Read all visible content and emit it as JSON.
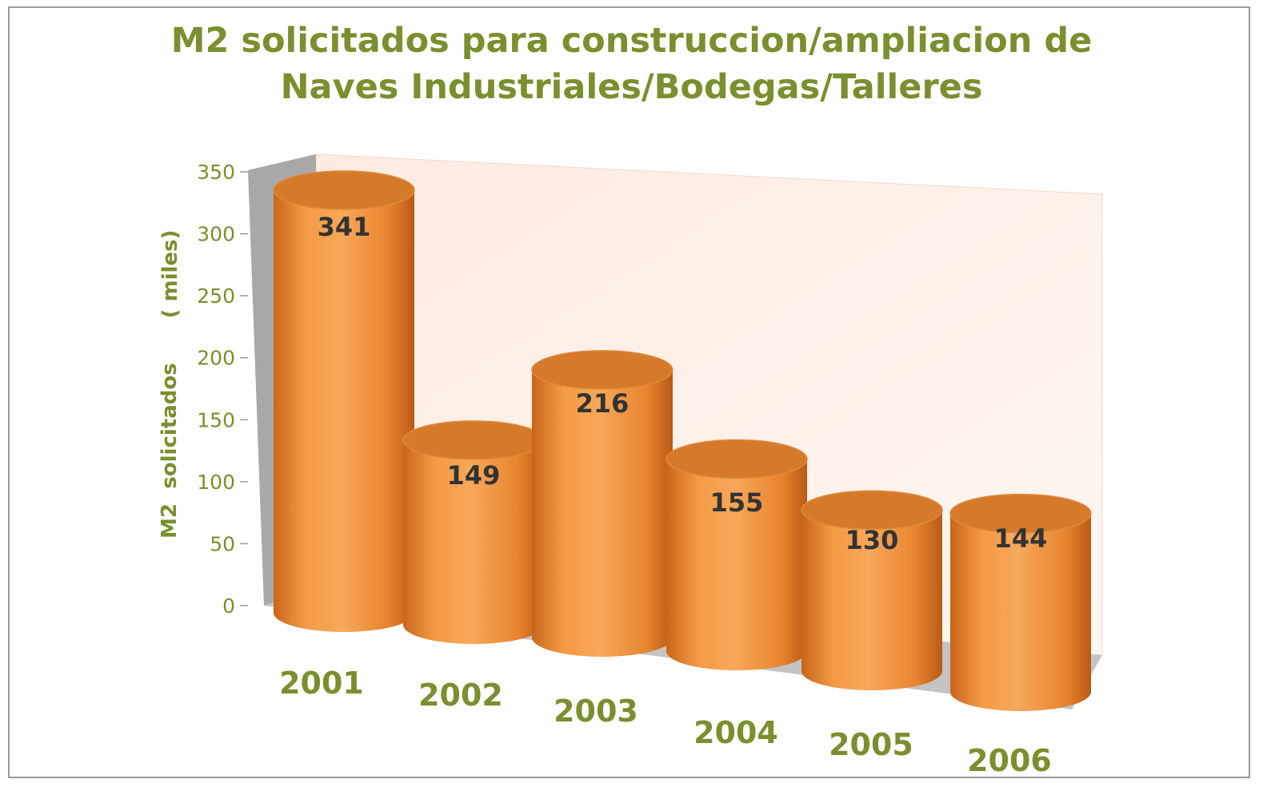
{
  "colors": {
    "title": "#7a8f2e",
    "axis_text": "#7a8f2e",
    "bar_body": "#f08a30",
    "bar_top": "#d47a2a",
    "data_label": "#333333",
    "back_wall": "#fdebe3",
    "side_wall": "#a8a8a8",
    "floor": "#c4c4c4"
  },
  "chart_data": {
    "type": "bar",
    "style": "3d-cylinder",
    "title_lines": [
      "M2 solicitados para construccion/ampliacion de",
      "Naves Industriales/Bodegas/Talleres"
    ],
    "ylabel_parts": [
      "M2",
      "solicitados",
      "( miles)"
    ],
    "xlabel": "",
    "categories": [
      "2001",
      "2002",
      "2003",
      "2004",
      "2005",
      "2006"
    ],
    "values": [
      341,
      149,
      216,
      155,
      130,
      144
    ],
    "data_labels": [
      "341",
      "149",
      "216",
      "155",
      "130",
      "144"
    ],
    "ylim": [
      0,
      350
    ],
    "yticks": [
      0,
      50,
      100,
      150,
      200,
      250,
      300,
      350
    ],
    "ytick_labels": [
      "0",
      "50",
      "100",
      "150",
      "200",
      "250",
      "300",
      "350"
    ],
    "grid": false,
    "legend": "none"
  }
}
